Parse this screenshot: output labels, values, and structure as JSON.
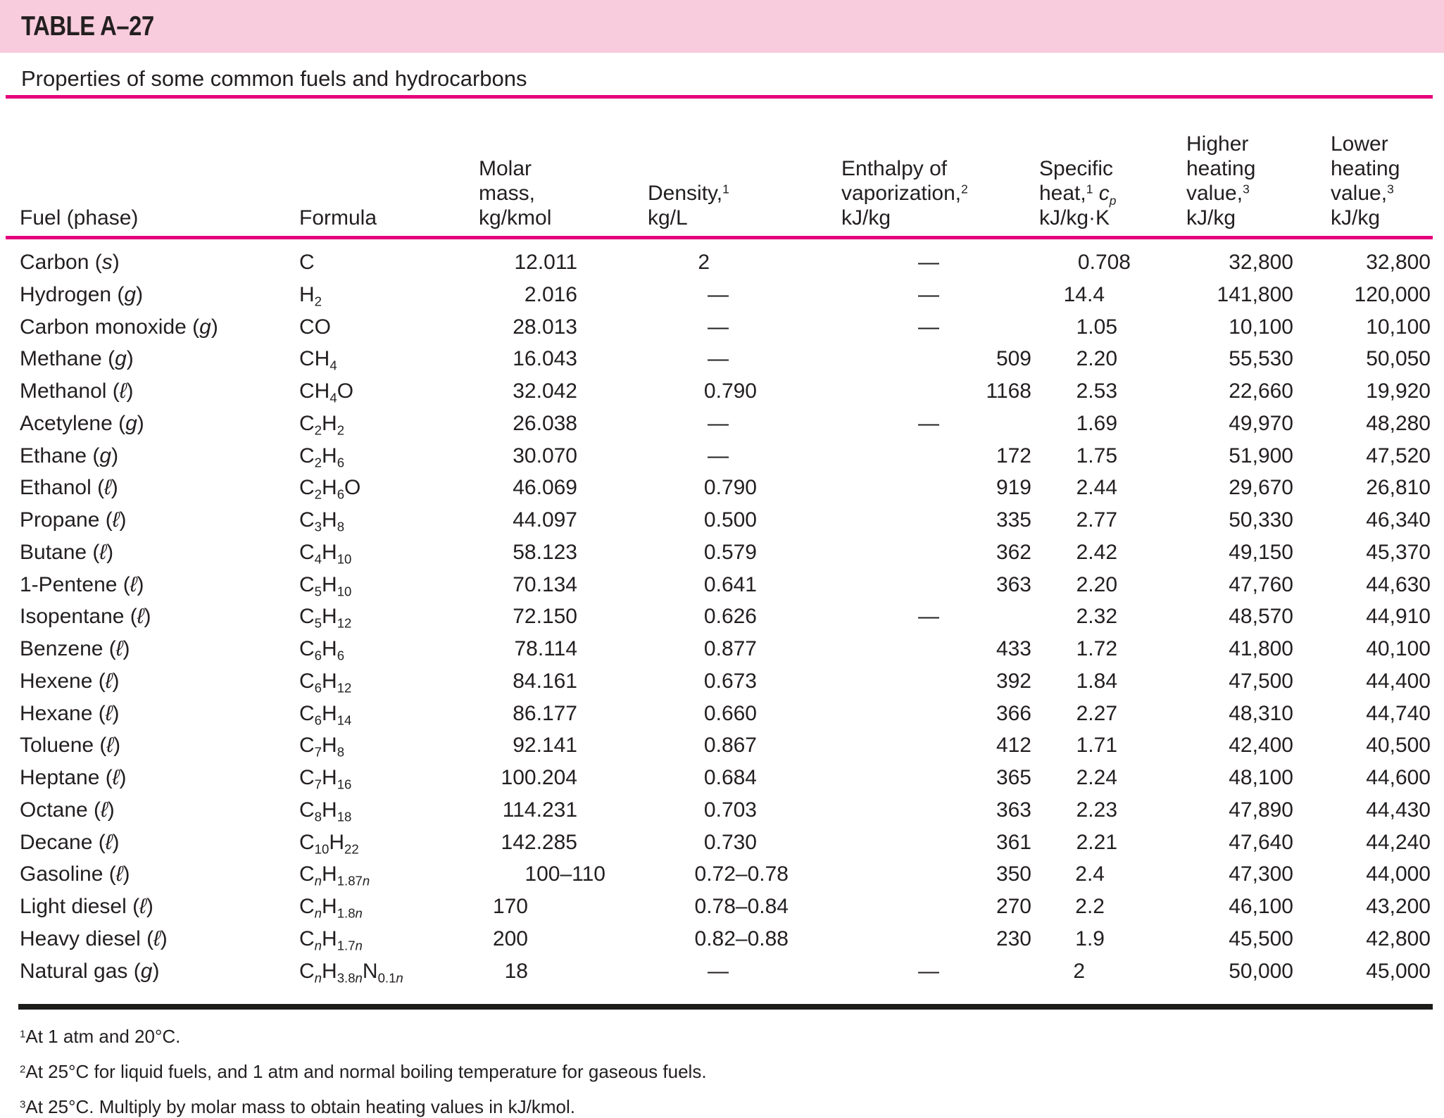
{
  "colors": {
    "band_pink": "#f8ccdc",
    "rule_magenta": "#e5017b",
    "heavy_rule": "#1d1d1b",
    "text": "#231f20"
  },
  "header": {
    "table_label": "TABLE A–27",
    "title": "Properties of some common fuels and hydrocarbons"
  },
  "table": {
    "columns": [
      {
        "id": "fuel",
        "lines": [
          "Fuel (phase)"
        ]
      },
      {
        "id": "formula",
        "lines": [
          "Formula"
        ]
      },
      {
        "id": "molar-mass",
        "lines": [
          "Molar",
          "mass,",
          "kg/kmol"
        ]
      },
      {
        "id": "density",
        "lines": [
          "Density,^1",
          "kg/L"
        ]
      },
      {
        "id": "enthalpy-of-vaporization",
        "lines": [
          "Enthalpy of",
          "vaporization,^2",
          "kJ/kg"
        ]
      },
      {
        "id": "specific-heat",
        "lines": [
          "Specific",
          "heat,^1 {cp}",
          "kJ/kg·K"
        ]
      },
      {
        "id": "higher-heating-value",
        "lines": [
          "Higher",
          "heating",
          "value,^3",
          "kJ/kg"
        ]
      },
      {
        "id": "lower-heating-value",
        "lines": [
          "Lower",
          "heating",
          "value,^3",
          "kJ/kg"
        ]
      }
    ],
    "rows": [
      {
        "fuel": "Carbon",
        "phase": "s",
        "formula": "C",
        "molar_mass": "12.011",
        "density": "2",
        "enthalpy": "—",
        "cp": "0.708",
        "hhv": "32,800",
        "lhv": "32,800"
      },
      {
        "fuel": "Hydrogen",
        "phase": "g",
        "formula": "H_2",
        "molar_mass": "2.016",
        "density": "—",
        "enthalpy": "—",
        "cp": "14.4",
        "hhv": "141,800",
        "lhv": "120,000"
      },
      {
        "fuel": "Carbon monoxide",
        "phase": "g",
        "formula": "CO",
        "molar_mass": "28.013",
        "density": "—",
        "enthalpy": "—",
        "cp": "1.05",
        "hhv": "10,100",
        "lhv": "10,100"
      },
      {
        "fuel": "Methane",
        "phase": "g",
        "formula": "CH_4",
        "molar_mass": "16.043",
        "density": "—",
        "enthalpy": "509",
        "cp": "2.20",
        "hhv": "55,530",
        "lhv": "50,050"
      },
      {
        "fuel": "Methanol",
        "phase": "ℓ",
        "formula": "CH_4O",
        "molar_mass": "32.042",
        "density": "0.790",
        "enthalpy": "1168",
        "cp": "2.53",
        "hhv": "22,660",
        "lhv": "19,920"
      },
      {
        "fuel": "Acetylene",
        "phase": "g",
        "formula": "C_2H_2",
        "molar_mass": "26.038",
        "density": "—",
        "enthalpy": "—",
        "cp": "1.69",
        "hhv": "49,970",
        "lhv": "48,280"
      },
      {
        "fuel": "Ethane",
        "phase": "g",
        "formula": "C_2H_6",
        "molar_mass": "30.070",
        "density": "—",
        "enthalpy": "172",
        "cp": "1.75",
        "hhv": "51,900",
        "lhv": "47,520"
      },
      {
        "fuel": "Ethanol",
        "phase": "ℓ",
        "formula": "C_2H_6O",
        "molar_mass": "46.069",
        "density": "0.790",
        "enthalpy": "919",
        "cp": "2.44",
        "hhv": "29,670",
        "lhv": "26,810"
      },
      {
        "fuel": "Propane",
        "phase": "ℓ",
        "formula": "C_3H_8",
        "molar_mass": "44.097",
        "density": "0.500",
        "enthalpy": "335",
        "cp": "2.77",
        "hhv": "50,330",
        "lhv": "46,340"
      },
      {
        "fuel": "Butane",
        "phase": "ℓ",
        "formula": "C_4H_10",
        "molar_mass": "58.123",
        "density": "0.579",
        "enthalpy": "362",
        "cp": "2.42",
        "hhv": "49,150",
        "lhv": "45,370"
      },
      {
        "fuel": "1-Pentene",
        "phase": "ℓ",
        "formula": "C_5H_10",
        "molar_mass": "70.134",
        "density": "0.641",
        "enthalpy": "363",
        "cp": "2.20",
        "hhv": "47,760",
        "lhv": "44,630"
      },
      {
        "fuel": "Isopentane",
        "phase": "ℓ",
        "formula": "C_5H_12",
        "molar_mass": "72.150",
        "density": "0.626",
        "enthalpy": "—",
        "cp": "2.32",
        "hhv": "48,570",
        "lhv": "44,910"
      },
      {
        "fuel": "Benzene",
        "phase": "ℓ",
        "formula": "C_6H_6",
        "molar_mass": "78.114",
        "density": "0.877",
        "enthalpy": "433",
        "cp": "1.72",
        "hhv": "41,800",
        "lhv": "40,100"
      },
      {
        "fuel": "Hexene",
        "phase": "ℓ",
        "formula": "C_6H_12",
        "molar_mass": "84.161",
        "density": "0.673",
        "enthalpy": "392",
        "cp": "1.84",
        "hhv": "47,500",
        "lhv": "44,400"
      },
      {
        "fuel": "Hexane",
        "phase": "ℓ",
        "formula": "C_6H_14",
        "molar_mass": "86.177",
        "density": "0.660",
        "enthalpy": "366",
        "cp": "2.27",
        "hhv": "48,310",
        "lhv": "44,740"
      },
      {
        "fuel": "Toluene",
        "phase": "ℓ",
        "formula": "C_7H_8",
        "molar_mass": "92.141",
        "density": "0.867",
        "enthalpy": "412",
        "cp": "1.71",
        "hhv": "42,400",
        "lhv": "40,500"
      },
      {
        "fuel": "Heptane",
        "phase": "ℓ",
        "formula": "C_7H_16",
        "molar_mass": "100.204",
        "density": "0.684",
        "enthalpy": "365",
        "cp": "2.24",
        "hhv": "48,100",
        "lhv": "44,600"
      },
      {
        "fuel": "Octane",
        "phase": "ℓ",
        "formula": "C_8H_18",
        "molar_mass": "114.231",
        "density": "0.703",
        "enthalpy": "363",
        "cp": "2.23",
        "hhv": "47,890",
        "lhv": "44,430"
      },
      {
        "fuel": "Decane",
        "phase": "ℓ",
        "formula": "C_10H_22",
        "molar_mass": "142.285",
        "density": "0.730",
        "enthalpy": "361",
        "cp": "2.21",
        "hhv": "47,640",
        "lhv": "44,240"
      },
      {
        "fuel": "Gasoline",
        "phase": "ℓ",
        "formula": "C_nH_{1.87n}",
        "molar_mass": "100–110",
        "density": "0.72–0.78",
        "enthalpy": "350",
        "cp": "2.4",
        "hhv": "47,300",
        "lhv": "44,000"
      },
      {
        "fuel": "Light diesel",
        "phase": "ℓ",
        "formula": "C_nH_{1.8n}",
        "molar_mass": "170",
        "density": "0.78–0.84",
        "enthalpy": "270",
        "cp": "2.2",
        "hhv": "46,100",
        "lhv": "43,200"
      },
      {
        "fuel": "Heavy diesel",
        "phase": "ℓ",
        "formula": "C_nH_{1.7n}",
        "molar_mass": "200",
        "density": "0.82–0.88",
        "enthalpy": "230",
        "cp": "1.9",
        "hhv": "45,500",
        "lhv": "42,800"
      },
      {
        "fuel": "Natural gas",
        "phase": "g",
        "formula": "C_nH_{3.8n}N_{0.1n}",
        "molar_mass": "18",
        "density": "—",
        "enthalpy": "—",
        "cp": "2",
        "hhv": "50,000",
        "lhv": "45,000"
      }
    ]
  },
  "footnotes": [
    {
      "sup": "1",
      "text": "At 1 atm and 20°C."
    },
    {
      "sup": "2",
      "text": "At 25°C for liquid fuels, and 1 atm and normal boiling temperature for gaseous fuels."
    },
    {
      "sup": "3",
      "text": "At 25°C. Multiply by molar mass to obtain heating values in kJ/kmol."
    }
  ]
}
